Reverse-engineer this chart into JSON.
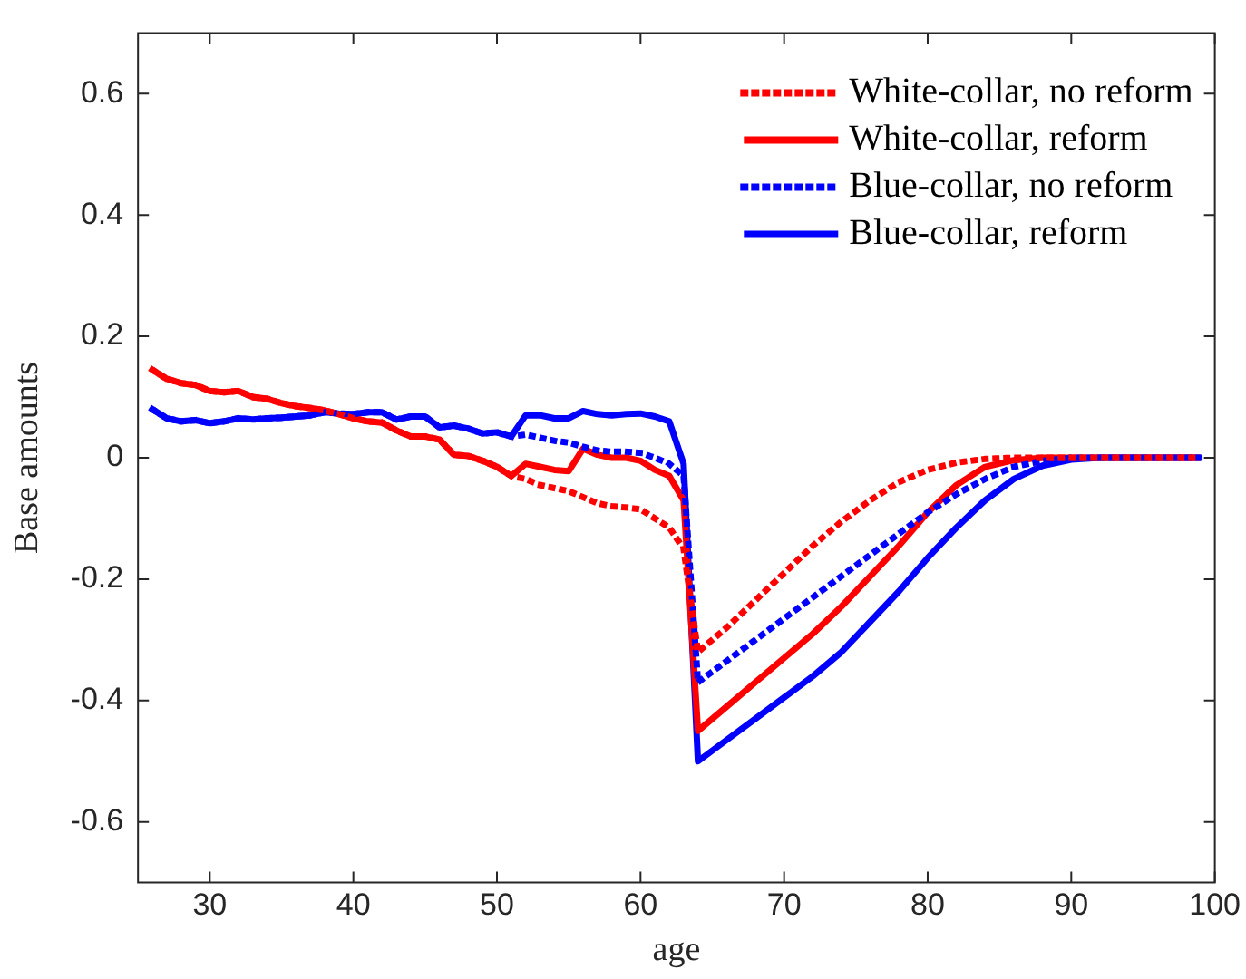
{
  "chart_data": {
    "type": "line",
    "xlabel": "age",
    "ylabel": "Base amounts",
    "xlim": [
      25,
      100
    ],
    "xticks": [
      30,
      40,
      50,
      60,
      70,
      80,
      90,
      100
    ],
    "ylim": [
      -0.7,
      0.7
    ],
    "yticks": [
      -0.6,
      -0.4,
      -0.2,
      0,
      0.2,
      0.4,
      0.6
    ],
    "grid": false,
    "legend": "top right",
    "marker": "none",
    "series": [
      {
        "name": "White-collar, no reform",
        "color": "#ff0000",
        "line_style": "dotted",
        "x": [
          26,
          27,
          28,
          29,
          30,
          31,
          32,
          33,
          34,
          35,
          36,
          37,
          38,
          39,
          40,
          41,
          42,
          43,
          44,
          45,
          46,
          47,
          48,
          49,
          50,
          51,
          52,
          53,
          54,
          55,
          56,
          57,
          58,
          59,
          60,
          61,
          62,
          63,
          64,
          66,
          68,
          70,
          72,
          74,
          76,
          78,
          80,
          82,
          84,
          86,
          88,
          90,
          95,
          99
        ],
        "values": [
          0.145,
          0.13,
          0.123,
          0.12,
          0.11,
          0.108,
          0.11,
          0.1,
          0.097,
          0.09,
          0.085,
          0.082,
          0.078,
          0.072,
          0.065,
          0.06,
          0.058,
          0.045,
          0.035,
          0.035,
          0.03,
          0.005,
          0.003,
          -0.005,
          -0.015,
          -0.03,
          -0.035,
          -0.045,
          -0.05,
          -0.055,
          -0.065,
          -0.075,
          -0.08,
          -0.082,
          -0.085,
          -0.1,
          -0.115,
          -0.15,
          -0.32,
          -0.28,
          -0.235,
          -0.19,
          -0.145,
          -0.105,
          -0.07,
          -0.04,
          -0.02,
          -0.008,
          -0.002,
          0,
          0,
          0,
          0,
          0
        ]
      },
      {
        "name": "White-collar, reform",
        "color": "#ff0000",
        "line_style": "solid",
        "x": [
          26,
          27,
          28,
          29,
          30,
          31,
          32,
          33,
          34,
          35,
          36,
          37,
          38,
          39,
          40,
          41,
          42,
          43,
          44,
          45,
          46,
          47,
          48,
          49,
          50,
          51,
          52,
          53,
          54,
          55,
          56,
          57,
          58,
          59,
          60,
          61,
          62,
          63,
          64,
          66,
          68,
          70,
          72,
          74,
          76,
          78,
          80,
          82,
          84,
          86,
          88,
          90,
          95,
          99
        ],
        "values": [
          0.145,
          0.13,
          0.123,
          0.12,
          0.11,
          0.108,
          0.11,
          0.1,
          0.097,
          0.09,
          0.085,
          0.082,
          0.078,
          0.072,
          0.065,
          0.06,
          0.058,
          0.045,
          0.035,
          0.035,
          0.03,
          0.005,
          0.003,
          -0.005,
          -0.015,
          -0.03,
          -0.01,
          -0.015,
          -0.02,
          -0.022,
          0.015,
          0.005,
          0,
          0,
          -0.005,
          -0.02,
          -0.03,
          -0.07,
          -0.45,
          -0.41,
          -0.37,
          -0.33,
          -0.29,
          -0.245,
          -0.195,
          -0.145,
          -0.09,
          -0.045,
          -0.015,
          -0.004,
          0,
          0,
          0,
          0
        ]
      },
      {
        "name": "Blue-collar, no reform",
        "color": "#0000ff",
        "line_style": "dotted",
        "x": [
          26,
          27,
          28,
          29,
          30,
          31,
          32,
          33,
          34,
          35,
          36,
          37,
          38,
          39,
          40,
          41,
          42,
          43,
          44,
          45,
          46,
          47,
          48,
          49,
          50,
          51,
          52,
          53,
          54,
          55,
          56,
          57,
          58,
          59,
          60,
          61,
          62,
          63,
          64,
          66,
          68,
          70,
          72,
          74,
          76,
          78,
          80,
          82,
          84,
          86,
          88,
          90,
          95,
          99
        ],
        "values": [
          0.08,
          0.065,
          0.06,
          0.062,
          0.057,
          0.06,
          0.065,
          0.063,
          0.065,
          0.066,
          0.068,
          0.07,
          0.075,
          0.073,
          0.072,
          0.075,
          0.075,
          0.063,
          0.068,
          0.068,
          0.05,
          0.053,
          0.048,
          0.04,
          0.042,
          0.035,
          0.038,
          0.033,
          0.028,
          0.025,
          0.018,
          0.012,
          0.01,
          0.01,
          0.008,
          0,
          -0.01,
          -0.03,
          -0.37,
          -0.335,
          -0.3,
          -0.265,
          -0.23,
          -0.195,
          -0.16,
          -0.125,
          -0.09,
          -0.06,
          -0.035,
          -0.015,
          -0.005,
          0,
          0,
          0
        ]
      },
      {
        "name": "Blue-collar, reform",
        "color": "#0000ff",
        "line_style": "solid",
        "x": [
          26,
          27,
          28,
          29,
          30,
          31,
          32,
          33,
          34,
          35,
          36,
          37,
          38,
          39,
          40,
          41,
          42,
          43,
          44,
          45,
          46,
          47,
          48,
          49,
          50,
          51,
          52,
          53,
          54,
          55,
          56,
          57,
          58,
          59,
          60,
          61,
          62,
          63,
          64,
          66,
          68,
          70,
          72,
          74,
          76,
          78,
          80,
          82,
          84,
          86,
          88,
          90,
          92,
          95,
          99
        ],
        "values": [
          0.08,
          0.065,
          0.06,
          0.062,
          0.057,
          0.06,
          0.065,
          0.063,
          0.065,
          0.066,
          0.068,
          0.07,
          0.075,
          0.073,
          0.072,
          0.075,
          0.075,
          0.063,
          0.068,
          0.068,
          0.05,
          0.053,
          0.048,
          0.04,
          0.042,
          0.035,
          0.07,
          0.07,
          0.065,
          0.065,
          0.077,
          0.072,
          0.07,
          0.072,
          0.073,
          0.068,
          0.06,
          -0.01,
          -0.5,
          -0.465,
          -0.43,
          -0.395,
          -0.36,
          -0.32,
          -0.27,
          -0.22,
          -0.165,
          -0.115,
          -0.07,
          -0.035,
          -0.013,
          -0.003,
          0,
          0,
          0
        ]
      }
    ]
  }
}
